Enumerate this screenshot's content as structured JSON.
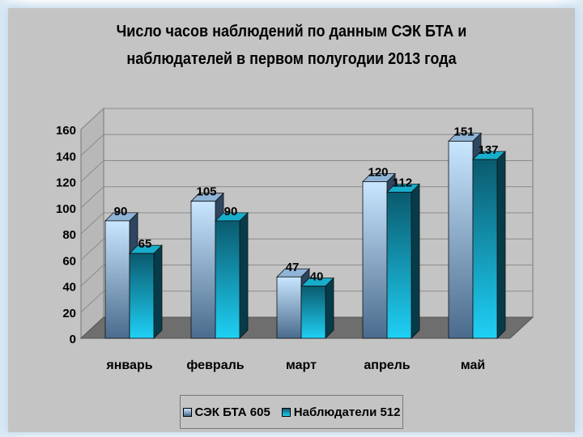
{
  "colors": {
    "series1_light": "#c9e6ff",
    "series1_dark": "#4a6b8c",
    "series2_light": "#1fd0f5",
    "series2_dark": "#0a5a6e",
    "background": "#c4c4c4",
    "floor": "#6e6e6e"
  },
  "chart_data": {
    "type": "bar",
    "title": "Число часов наблюдений по данным СЭК БТА и наблюдателей в первом полугодии 2013 года",
    "title_lines": [
      "Число часов наблюдений по данным СЭК БТА и",
      "наблюдателей в первом полугодии 2013 года"
    ],
    "categories": [
      "январь",
      "февраль",
      "март",
      "апрель",
      "май"
    ],
    "series": [
      {
        "name": "СЭК БТА 605",
        "values": [
          90,
          105,
          47,
          120,
          151
        ]
      },
      {
        "name": "Наблюдатели 512",
        "values": [
          65,
          90,
          40,
          112,
          137
        ]
      }
    ],
    "ylim": [
      0,
      160
    ],
    "yticks": [
      "0",
      "20",
      "40",
      "60",
      "80",
      "100",
      "120",
      "140",
      "160"
    ],
    "grid": true,
    "legend_position": "bottom",
    "style": "3d"
  }
}
